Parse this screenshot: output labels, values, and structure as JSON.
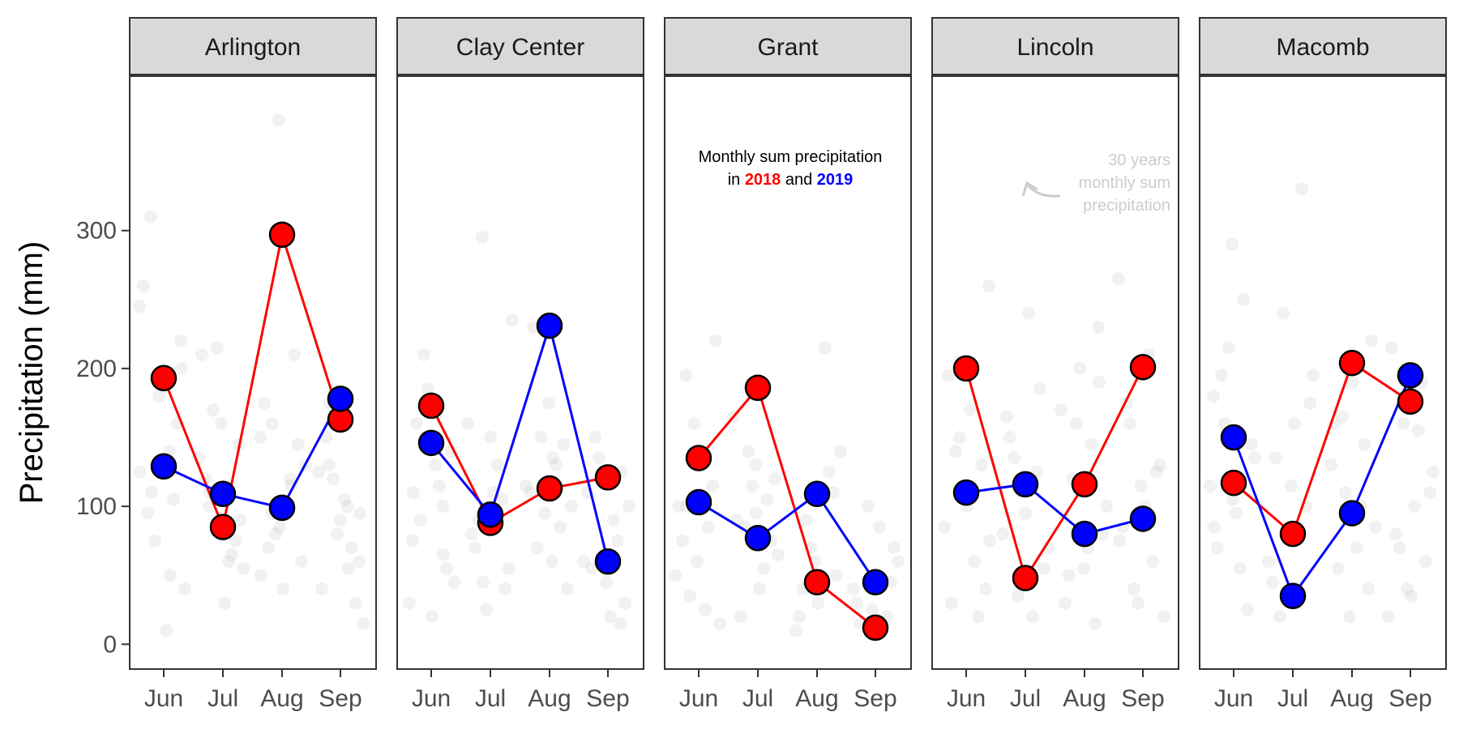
{
  "chart_data": {
    "type": "scatter",
    "ylabel": "Precipitation (mm)",
    "ylim": [
      -18,
      412
    ],
    "yticks": [
      0,
      100,
      200,
      300
    ],
    "months": [
      "Jun",
      "Jul",
      "Aug",
      "Sep"
    ],
    "colors": {
      "2018": "#ff0000",
      "2019": "#0000ff",
      "background": "#bbbbbb",
      "strip": "#d9d9d9"
    },
    "annotation": {
      "line1": "Monthly sum precipitation",
      "line2_prefix": "in",
      "year_a": "2018",
      "connector": "and",
      "year_b": "2019"
    },
    "background_annotation": [
      "30 years",
      "monthly sum",
      "precipitation"
    ],
    "series": [
      {
        "name": "2018",
        "color": "#ff0000"
      },
      {
        "name": "2019",
        "color": "#0000ff"
      }
    ],
    "panels": [
      {
        "site": "Arlington",
        "y2018": [
          193,
          85,
          297,
          163
        ],
        "y2019": [
          129,
          109,
          99,
          178
        ]
      },
      {
        "site": "Clay Center",
        "y2018": [
          173,
          88,
          113,
          121
        ],
        "y2019": [
          146,
          94,
          231,
          60
        ]
      },
      {
        "site": "Grant",
        "y2018": [
          135,
          186,
          45,
          12
        ],
        "y2019": [
          103,
          77,
          109,
          45
        ]
      },
      {
        "site": "Lincoln",
        "y2018": [
          200,
          48,
          116,
          201
        ],
        "y2019": [
          110,
          116,
          80,
          91
        ]
      },
      {
        "site": "Macomb",
        "y2018": [
          117,
          80,
          204,
          176
        ],
        "y2019": [
          150,
          35,
          95,
          195
        ]
      }
    ],
    "background_points": [
      [
        [
          245,
          140,
          310,
          220,
          190,
          260,
          105,
          75,
          40,
          10,
          95,
          160,
          180,
          125,
          50,
          110,
          200
        ],
        [
          100,
          145,
          90,
          210,
          65,
          170,
          55,
          30,
          120,
          75,
          215,
          135,
          60,
          110,
          90,
          160
        ],
        [
          380,
          150,
          120,
          95,
          60,
          40,
          175,
          210,
          80,
          130,
          100,
          70,
          145,
          85,
          50,
          115,
          160
        ],
        [
          100,
          130,
          60,
          90,
          40,
          70,
          120,
          15,
          105,
          150,
          30,
          80,
          125,
          55,
          175,
          95
        ]
      ],
      [
        [
          75,
          100,
          210,
          45,
          130,
          160,
          55,
          185,
          30,
          115,
          90,
          140,
          20,
          110,
          65
        ],
        [
          295,
          235,
          110,
          70,
          40,
          25,
          160,
          130,
          90,
          55,
          150,
          80,
          105,
          45
        ],
        [
          60,
          230,
          145,
          95,
          115,
          130,
          70,
          40,
          175,
          110,
          85,
          150,
          100,
          135
        ],
        [
          15,
          125,
          60,
          90,
          150,
          30,
          45,
          110,
          75,
          135,
          100,
          20,
          55,
          125
        ]
      ],
      [
        [
          195,
          220,
          60,
          100,
          85,
          35,
          15,
          140,
          75,
          115,
          160,
          50,
          25,
          100
        ],
        [
          130,
          90,
          105,
          140,
          65,
          40,
          20,
          75,
          115,
          165,
          55,
          85,
          120,
          95
        ],
        [
          215,
          90,
          50,
          30,
          20,
          125,
          70,
          140,
          105,
          40,
          110,
          60,
          10
        ],
        [
          70,
          50,
          30,
          20,
          100,
          60,
          85,
          15,
          45,
          25,
          40
        ]
      ],
      [
        [
          205,
          260,
          170,
          30,
          130,
          110,
          85,
          60,
          140,
          40,
          100,
          195,
          20,
          150,
          75
        ],
        [
          240,
          150,
          185,
          110,
          80,
          20,
          135,
          55,
          95,
          165,
          125,
          35,
          70,
          45
        ],
        [
          230,
          200,
          170,
          145,
          120,
          80,
          55,
          30,
          15,
          160,
          100,
          70,
          50,
          190
        ],
        [
          265,
          210,
          160,
          130,
          115,
          85,
          60,
          40,
          20,
          100,
          175,
          125,
          30,
          75
        ]
      ],
      [
        [
          290,
          180,
          250,
          160,
          135,
          95,
          70,
          25,
          215,
          115,
          55,
          195,
          145,
          105,
          85
        ],
        [
          330,
          240,
          195,
          160,
          135,
          100,
          80,
          60,
          30,
          20,
          175,
          115,
          45
        ],
        [
          220,
          190,
          160,
          145,
          110,
          85,
          70,
          55,
          40,
          20,
          130,
          100,
          165
        ],
        [
          215,
          190,
          160,
          125,
          100,
          80,
          60,
          40,
          20,
          155,
          70,
          110,
          35
        ]
      ]
    ]
  }
}
